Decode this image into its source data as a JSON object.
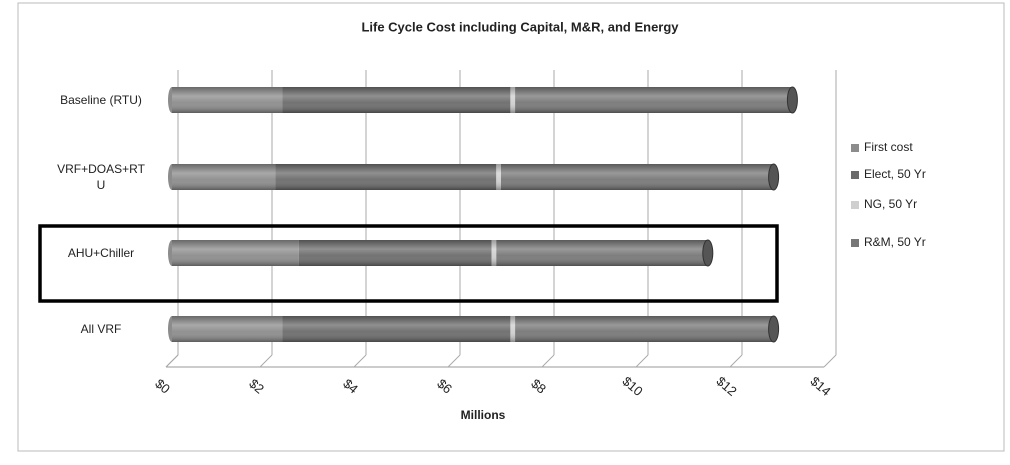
{
  "chart_data": {
    "type": "stacked_barh",
    "title": "Life Cycle Cost including Capital, M&R, and Energy",
    "xlabel": "Millions",
    "categories": [
      "Baseline (RTU)",
      "VRF+DOAS+RTU",
      "AHU+Chiller",
      "All VRF"
    ],
    "series": [
      {
        "name": "First cost",
        "color": "#8c8c8c",
        "values": [
          2.35,
          2.2,
          2.7,
          2.35
        ]
      },
      {
        "name": "Elect, 50 Yr",
        "color": "#6b6b6b",
        "values": [
          4.85,
          4.7,
          4.1,
          4.85
        ]
      },
      {
        "name": "NG, 50 Yr",
        "color": "#cfcfcf",
        "values": [
          0.1,
          0.1,
          0.1,
          0.1
        ]
      },
      {
        "name": "R&M, 50 Yr",
        "color": "#777777",
        "values": [
          5.9,
          5.8,
          4.5,
          5.5
        ]
      }
    ],
    "xlim": [
      0,
      14
    ],
    "xticks": [
      {
        "value": 0,
        "label": "$0"
      },
      {
        "value": 2,
        "label": "$2"
      },
      {
        "value": 4,
        "label": "$4"
      },
      {
        "value": 6,
        "label": "$6"
      },
      {
        "value": 8,
        "label": "$8"
      },
      {
        "value": 10,
        "label": "$10"
      },
      {
        "value": 12,
        "label": "$12"
      },
      {
        "value": 14,
        "label": "$14"
      }
    ],
    "grid": true,
    "legend": "right"
  }
}
